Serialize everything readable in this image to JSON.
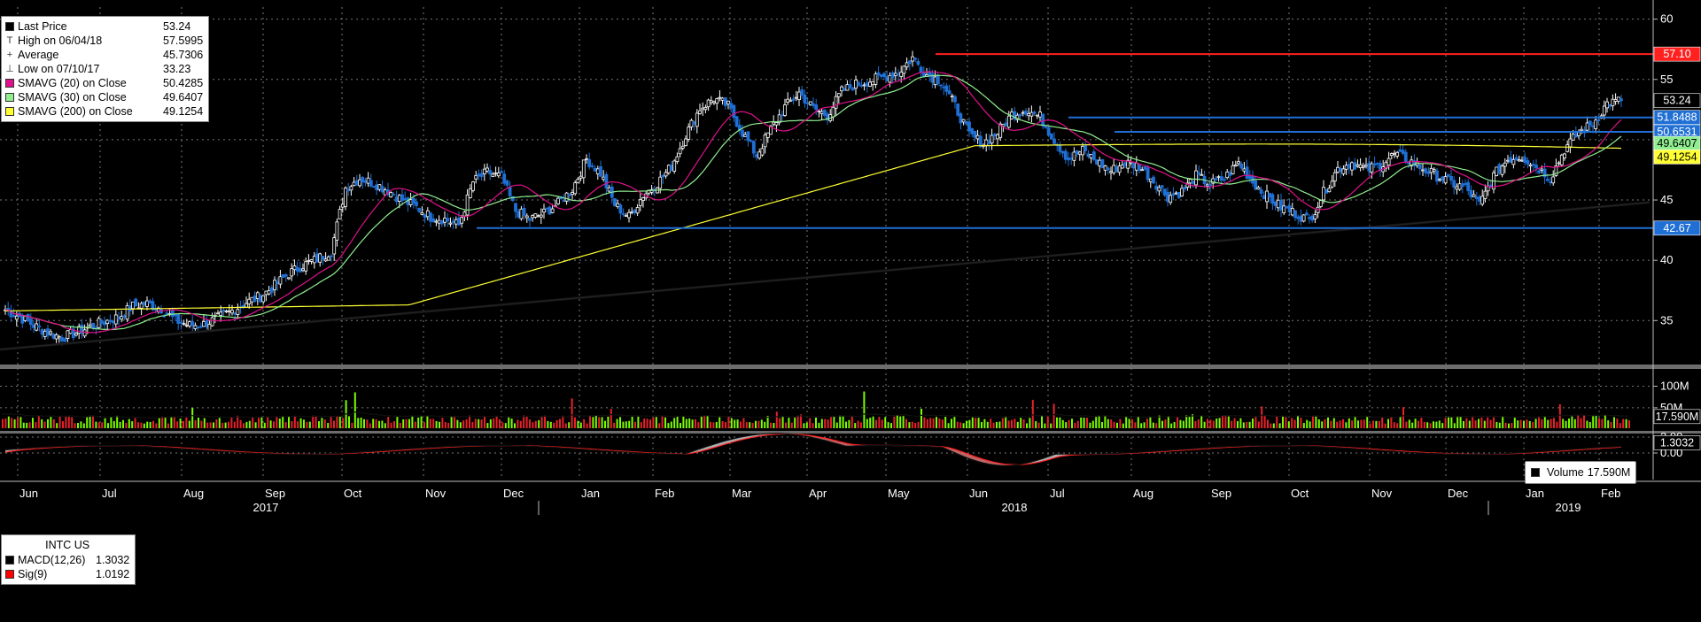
{
  "ticker": "INTC US",
  "legend_main": [
    {
      "label": "Last Price",
      "value": "53.24",
      "swatch": "#000000",
      "glyph": ""
    },
    {
      "label": "High on 06/04/18",
      "value": "57.5995",
      "swatch": "",
      "glyph": "T"
    },
    {
      "label": "Average",
      "value": "45.7306",
      "swatch": "",
      "glyph": "+"
    },
    {
      "label": "Low on 07/10/17",
      "value": "33.23",
      "swatch": "",
      "glyph": "⊥"
    },
    {
      "label": "SMAVG (20)  on Close",
      "value": "50.4285",
      "swatch": "#e0118b",
      "glyph": ""
    },
    {
      "label": "SMAVG (30)  on Close",
      "value": "49.6407",
      "swatch": "#90ee90",
      "glyph": ""
    },
    {
      "label": "SMAVG (200)  on Close",
      "value": "49.1254",
      "swatch": "#ffff33",
      "glyph": ""
    }
  ],
  "legend_volume": {
    "label": "Volume",
    "value": "17.590M"
  },
  "legend_macd": [
    {
      "label": "MACD(12,26)",
      "value": "1.3032",
      "swatch": "#000000"
    },
    {
      "label": "Sig(9)",
      "value": "1.0192",
      "swatch": "#ff0000"
    }
  ],
  "chart_data": {
    "type": "candlestick",
    "price_axis": {
      "ylim": [
        31.5,
        61
      ],
      "ticks": [
        35,
        40,
        45,
        50,
        55,
        60
      ]
    },
    "months": [
      "Jun",
      "Jul",
      "Aug",
      "Sep",
      "Oct",
      "Nov",
      "Dec",
      "Jan",
      "Feb",
      "Mar",
      "Apr",
      "May",
      "Jun",
      "Jul",
      "Aug",
      "Sep",
      "Oct",
      "Nov",
      "Dec",
      "Jan",
      "Feb"
    ],
    "years": [
      "2017",
      "2018",
      "2019"
    ],
    "price_series_weekly_close": [
      35.9,
      35.3,
      34.6,
      34.0,
      33.6,
      34.0,
      34.5,
      34.9,
      35.3,
      36.2,
      36.4,
      36.0,
      35.0,
      34.6,
      34.7,
      35.2,
      35.8,
      36.5,
      37.0,
      37.9,
      38.9,
      39.6,
      40.1,
      40.8,
      46.0,
      46.8,
      46.4,
      45.8,
      45.0,
      44.4,
      43.6,
      43.4,
      42.9,
      46.5,
      47.3,
      46.9,
      44.1,
      43.4,
      43.9,
      44.7,
      45.9,
      48.4,
      47.2,
      44.6,
      43.6,
      45.4,
      46.4,
      47.8,
      50.4,
      52.6,
      53.4,
      52.8,
      50.6,
      48.7,
      50.9,
      52.7,
      53.9,
      52.6,
      52.0,
      54.0,
      54.6,
      54.9,
      55.2,
      55.6,
      56.8,
      55.4,
      54.9,
      52.8,
      50.4,
      49.7,
      50.6,
      52.1,
      52.5,
      51.9,
      50.0,
      48.4,
      49.1,
      48.2,
      47.4,
      48.1,
      47.8,
      46.6,
      45.3,
      45.7,
      47.0,
      46.3,
      46.8,
      48.1,
      46.5,
      45.3,
      44.4,
      43.9,
      43.3,
      45.6,
      47.6,
      48.1,
      47.5,
      47.9,
      48.8,
      48.3,
      47.6,
      47.0,
      46.4,
      46.0,
      44.6,
      47.0,
      48.4,
      48.6,
      47.8,
      46.8,
      49.2,
      50.6,
      51.3,
      53.0,
      53.24
    ],
    "volume_axis": {
      "ticks": [
        "50M",
        "100M"
      ]
    },
    "macd_axis": {
      "ticks": [
        "0.00",
        "2.00"
      ]
    },
    "price_levels": [
      {
        "value": 57.1,
        "label": "57.10",
        "color": "#ff2020"
      },
      {
        "value": 51.8488,
        "label": "51.8488",
        "color": "#1f6fd4"
      },
      {
        "value": 50.6531,
        "label": "50.6531",
        "color": "#1f6fd4"
      },
      {
        "value": 42.67,
        "label": "42.67",
        "color": "#1f6fd4"
      }
    ],
    "trendline": {
      "start": 32.6,
      "end": 44.8
    },
    "last_price": {
      "value": 53.24,
      "label": "53.24"
    },
    "sma30_last": {
      "value": 49.6407,
      "label": "49.6407"
    },
    "sma200_last": {
      "value": 49.1254,
      "label": "49.1254"
    },
    "volume_last": {
      "label": "17.590M"
    },
    "macd_last": {
      "label": "1.3032"
    }
  },
  "colors": {
    "up": "#ffffff",
    "down": "#1f6fd4",
    "sma20": "#e0118b",
    "sma30": "#90ee90",
    "sma200": "#ffff33",
    "vol_up": "#7cfc00",
    "vol_down": "#e8202a"
  }
}
